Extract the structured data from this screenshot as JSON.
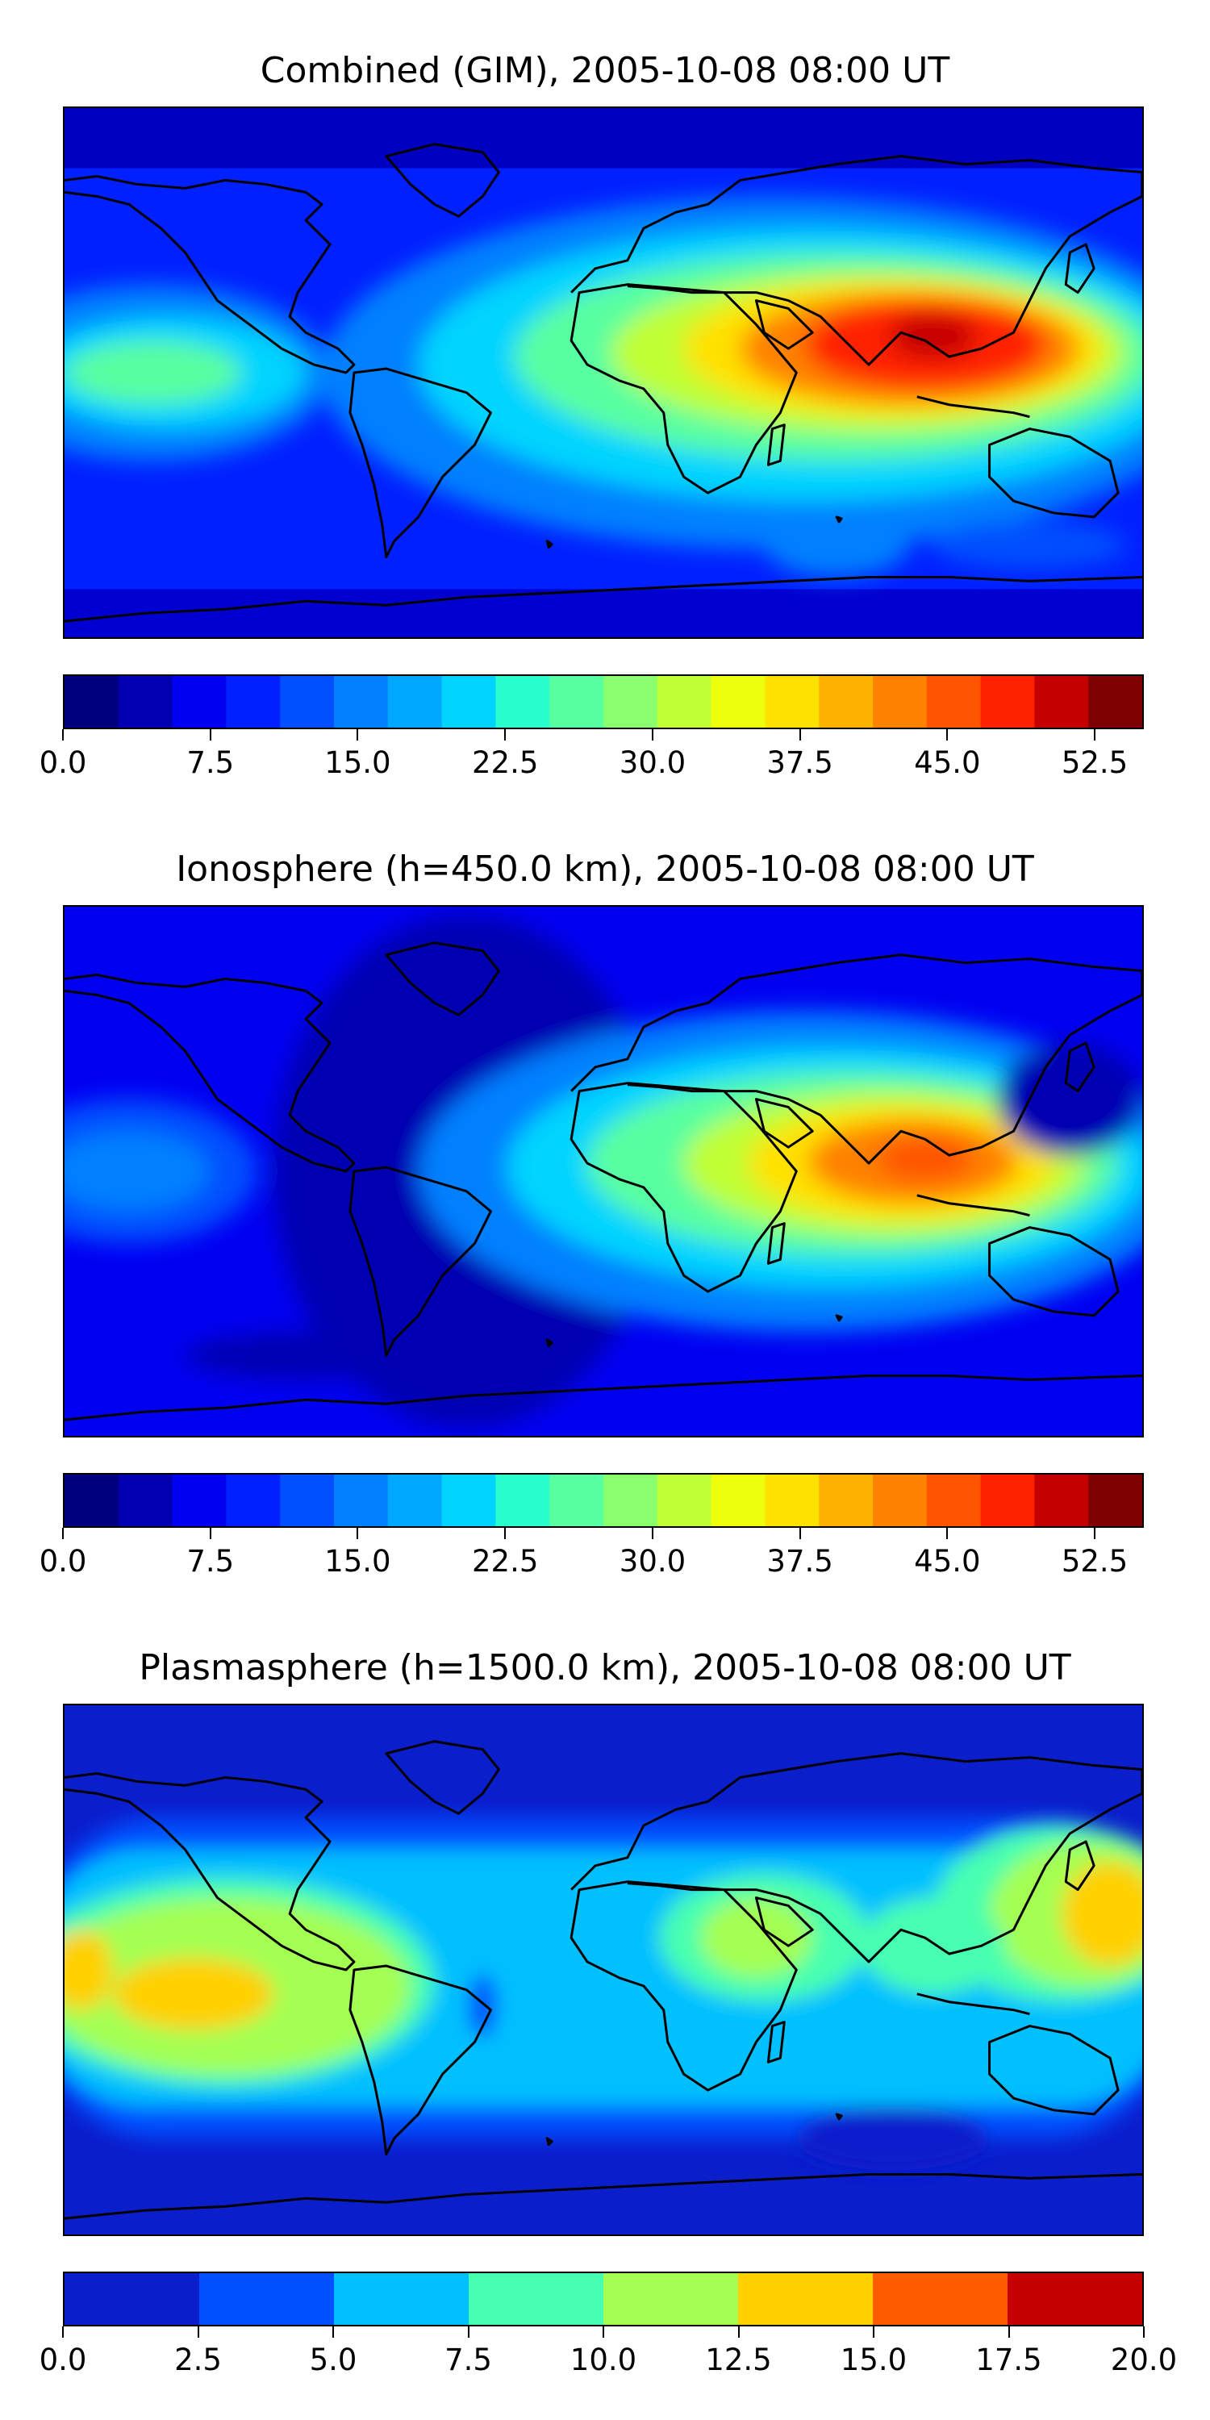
{
  "panels": [
    {
      "title": "Combined (GIM), 2005-10-08 08:00 UT",
      "colorbar": {
        "colors": [
          "#00007f",
          "#0000b2",
          "#0000f1",
          "#0020ff",
          "#0050ff",
          "#0080ff",
          "#00a8ff",
          "#00d4ff",
          "#29ffce",
          "#58ffa0",
          "#8aff6d",
          "#c1ff36",
          "#edff0a",
          "#ffe100",
          "#ffb100",
          "#ff8200",
          "#ff5500",
          "#ff2200",
          "#c40000",
          "#7f0000"
        ],
        "tick_labels": [
          "0.0",
          "7.5",
          "15.0",
          "22.5",
          "30.0",
          "37.5",
          "45.0",
          "52.5"
        ]
      }
    },
    {
      "title": "Ionosphere  (h=450.0 km), 2005-10-08 08:00 UT",
      "colorbar": {
        "colors": [
          "#00007f",
          "#0000b2",
          "#0000f1",
          "#0020ff",
          "#0050ff",
          "#0080ff",
          "#00a8ff",
          "#00d4ff",
          "#29ffce",
          "#58ffa0",
          "#8aff6d",
          "#c1ff36",
          "#edff0a",
          "#ffe100",
          "#ffb100",
          "#ff8200",
          "#ff5500",
          "#ff2200",
          "#c40000",
          "#7f0000"
        ],
        "tick_labels": [
          "0.0",
          "7.5",
          "15.0",
          "22.5",
          "30.0",
          "37.5",
          "45.0",
          "52.5"
        ]
      }
    },
    {
      "title": "Plasmasphere (h=1500.0 km), 2005-10-08 08:00 UT",
      "colorbar": {
        "colors": [
          "#0a1ecc",
          "#0050ff",
          "#00c0ff",
          "#46ffb0",
          "#a4ff52",
          "#ffd000",
          "#ff5c00",
          "#c40000"
        ],
        "tick_labels": [
          "0.0",
          "2.5",
          "5.0",
          "7.5",
          "10.0",
          "12.5",
          "15.0",
          "17.5",
          "20.0"
        ]
      }
    }
  ]
}
